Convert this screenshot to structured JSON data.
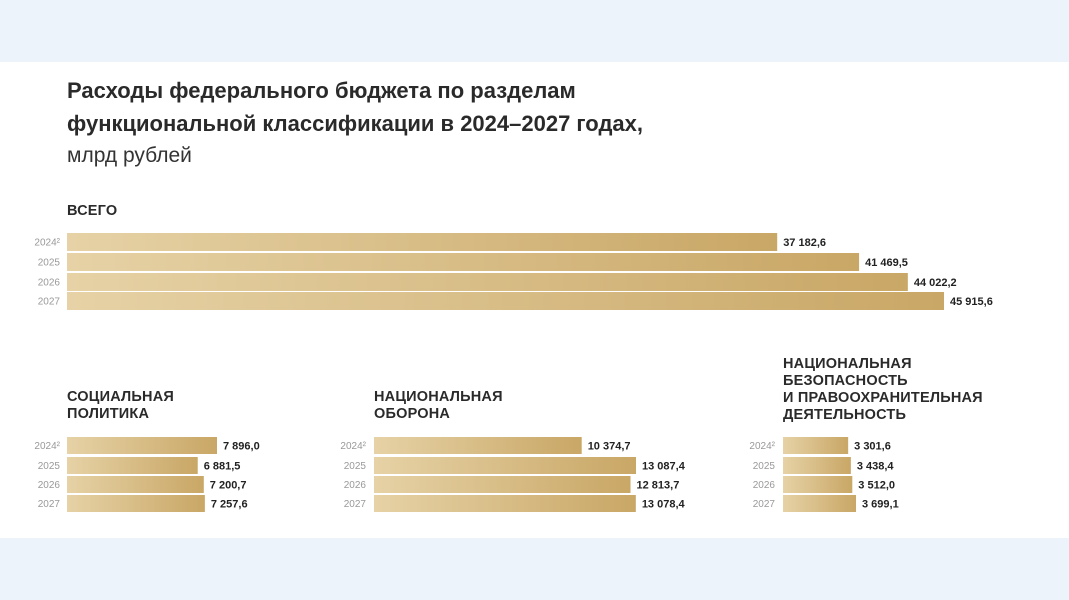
{
  "title_lines": [
    "Расходы федерального бюджета по разделам",
    "функциональной классификации в 2024–2027 годах,"
  ],
  "subtitle": "млрд рублей",
  "colors": {
    "bar_light": "#e6d2a6",
    "bar_dark": "#c9a766",
    "background": "#ecf3fb",
    "card": "#ffffff"
  },
  "chart_data": [
    {
      "type": "bar",
      "title": "ВСЕГО",
      "categories": [
        "2024²",
        "2025",
        "2026",
        "2027"
      ],
      "values": [
        37182.6,
        41469.5,
        44022.2,
        45915.6
      ],
      "labels": [
        "37 182,6",
        "41 469,5",
        "44 022,2",
        "45 915,6"
      ]
    },
    {
      "type": "bar",
      "title_lines": [
        "СОЦИАЛЬНАЯ",
        "ПОЛИТИКА"
      ],
      "categories": [
        "2024²",
        "2025",
        "2026",
        "2027"
      ],
      "values": [
        7896.0,
        6881.5,
        7200.7,
        7257.6
      ],
      "labels": [
        "7 896,0",
        "6 881,5",
        "7 200,7",
        "7 257,6"
      ]
    },
    {
      "type": "bar",
      "title_lines": [
        "НАЦИОНАЛЬНАЯ",
        "ОБОРОНА"
      ],
      "categories": [
        "2024²",
        "2025",
        "2026",
        "2027"
      ],
      "values": [
        10374.7,
        13087.4,
        12813.7,
        13078.4
      ],
      "labels": [
        "10 374,7",
        "13 087,4",
        "12 813,7",
        "13 078,4"
      ]
    },
    {
      "type": "bar",
      "title_lines": [
        "НАЦИОНАЛЬНАЯ",
        "БЕЗОПАСНОСТЬ",
        "И ПРАВООХРАНИТЕЛЬНАЯ",
        "ДЕЯТЕЛЬНОСТЬ"
      ],
      "categories": [
        "2024²",
        "2025",
        "2026",
        "2027"
      ],
      "values": [
        3301.6,
        3438.4,
        3512.0,
        3699.1
      ],
      "labels": [
        "3 301,6",
        "3 438,4",
        "3 512,0",
        "3 699,1"
      ]
    }
  ]
}
